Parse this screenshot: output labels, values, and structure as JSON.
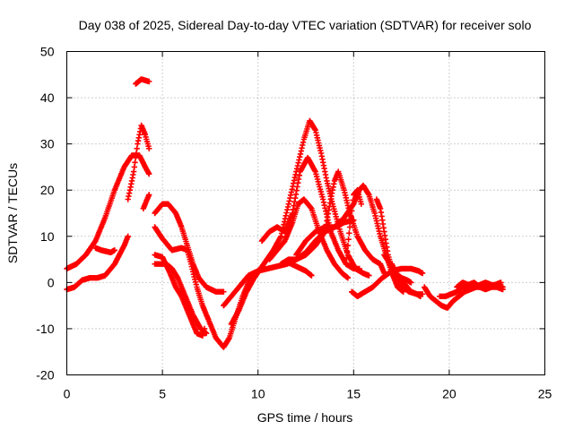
{
  "chart_data": {
    "type": "scatter",
    "title": "Day 038 of 2025, Sidereal Day-to-day VTEC variation (SDTVAR) for receiver solo",
    "xlabel": "GPS time / hours",
    "ylabel": "SDTVAR / TECUs",
    "xlim": [
      0,
      25
    ],
    "ylim": [
      -20,
      50
    ],
    "xticks": [
      0,
      5,
      10,
      15,
      20,
      25
    ],
    "yticks": [
      -20,
      -10,
      0,
      10,
      20,
      30,
      40,
      50
    ],
    "xtick_labels": [
      "0",
      "5",
      "10",
      "15",
      "20",
      "25"
    ],
    "ytick_labels": [
      "-20",
      "-10",
      "0",
      "10",
      "20",
      "30",
      "40",
      "50"
    ],
    "grid": true,
    "marker": "+",
    "color": "#ff0000",
    "series": [
      {
        "name": "s1",
        "points": [
          [
            0,
            3
          ],
          [
            0.5,
            4
          ],
          [
            1,
            6
          ],
          [
            1.5,
            9
          ],
          [
            2,
            14
          ],
          [
            2.5,
            20
          ],
          [
            3,
            25
          ],
          [
            3.4,
            27.5
          ],
          [
            3.8,
            27.5
          ],
          [
            4.1,
            25
          ],
          [
            4.3,
            23.5
          ]
        ]
      },
      {
        "name": "s2",
        "points": [
          [
            0,
            -1.5
          ],
          [
            0.4,
            -1
          ],
          [
            0.8,
            0.5
          ],
          [
            1.2,
            1
          ],
          [
            1.6,
            1
          ],
          [
            2,
            1.5
          ],
          [
            2.5,
            4
          ],
          [
            3,
            8
          ],
          [
            3.2,
            10
          ]
        ]
      },
      {
        "name": "s3",
        "points": [
          [
            1.5,
            7.5
          ],
          [
            1.8,
            7
          ],
          [
            2.3,
            6.5
          ],
          [
            2.5,
            7
          ]
        ]
      },
      {
        "name": "s4",
        "points": [
          [
            3.2,
            18
          ],
          [
            3.5,
            24
          ],
          [
            3.7,
            30
          ],
          [
            3.9,
            34
          ],
          [
            4.1,
            32
          ],
          [
            4.3,
            29
          ]
        ]
      },
      {
        "name": "s5",
        "points": [
          [
            3.6,
            43
          ],
          [
            3.9,
            44
          ],
          [
            4.3,
            43.5
          ]
        ]
      },
      {
        "name": "s6",
        "points": [
          [
            4,
            16
          ],
          [
            4.2,
            18
          ],
          [
            4.3,
            19
          ]
        ]
      },
      {
        "name": "s7",
        "points": [
          [
            4.6,
            15
          ],
          [
            5,
            17
          ],
          [
            5.3,
            17
          ],
          [
            5.7,
            15
          ],
          [
            6,
            12
          ],
          [
            6.3,
            8
          ],
          [
            6.6,
            4
          ],
          [
            6.9,
            1
          ],
          [
            7.3,
            -1
          ],
          [
            7.8,
            -2
          ],
          [
            8.2,
            -2
          ]
        ]
      },
      {
        "name": "s8",
        "points": [
          [
            4.6,
            12
          ],
          [
            5,
            9.5
          ],
          [
            5.5,
            7
          ],
          [
            6,
            7.5
          ],
          [
            6.3,
            7
          ],
          [
            6.5,
            4
          ],
          [
            6.8,
            -1
          ],
          [
            7.1,
            -5
          ],
          [
            7.4,
            -8
          ],
          [
            7.8,
            -12
          ],
          [
            8.2,
            -14
          ],
          [
            8.5,
            -12
          ],
          [
            8.8,
            -8
          ],
          [
            9.2,
            -3
          ],
          [
            9.6,
            1
          ],
          [
            10,
            2.5
          ],
          [
            10.2,
            3
          ]
        ]
      },
      {
        "name": "s9",
        "points": [
          [
            4.6,
            6
          ],
          [
            5,
            5.5
          ],
          [
            5.4,
            2
          ],
          [
            5.7,
            -1
          ],
          [
            6,
            -3
          ],
          [
            6.2,
            -5
          ],
          [
            6.5,
            -8
          ],
          [
            6.8,
            -11
          ],
          [
            7.1,
            -11.5
          ],
          [
            7.2,
            -10
          ]
        ]
      },
      {
        "name": "s10",
        "points": [
          [
            4.6,
            4
          ],
          [
            5.2,
            4
          ],
          [
            5.5,
            3
          ],
          [
            5.8,
            1
          ],
          [
            6.2,
            -3
          ],
          [
            6.6,
            -7
          ],
          [
            7,
            -10
          ],
          [
            7.3,
            -11
          ]
        ]
      },
      {
        "name": "s11",
        "points": [
          [
            8.2,
            -5
          ],
          [
            8.6,
            -3
          ],
          [
            9,
            -1
          ],
          [
            9.5,
            1.5
          ],
          [
            10,
            2.5
          ],
          [
            10.5,
            3
          ],
          [
            11,
            3.5
          ],
          [
            11.5,
            4
          ],
          [
            12,
            5
          ],
          [
            12.5,
            6.5
          ],
          [
            13,
            9
          ],
          [
            13.5,
            11
          ],
          [
            14,
            12
          ],
          [
            14.5,
            13
          ],
          [
            15,
            13.5
          ]
        ]
      },
      {
        "name": "s12",
        "points": [
          [
            8.6,
            -9
          ],
          [
            9,
            -6
          ],
          [
            9.4,
            -2
          ],
          [
            9.8,
            1
          ],
          [
            10.3,
            4
          ],
          [
            10.8,
            7
          ],
          [
            11.2,
            10
          ],
          [
            11.6,
            17
          ],
          [
            12,
            24
          ],
          [
            12.4,
            31
          ],
          [
            12.7,
            35
          ],
          [
            13,
            33
          ],
          [
            13.3,
            28
          ],
          [
            13.6,
            22
          ],
          [
            13.9,
            17
          ],
          [
            14.3,
            11
          ],
          [
            14.7,
            6
          ],
          [
            15.1,
            3
          ],
          [
            15.5,
            2
          ],
          [
            15.8,
            1.5
          ]
        ]
      },
      {
        "name": "s13",
        "points": [
          [
            10.2,
            9
          ],
          [
            10.6,
            11
          ],
          [
            11,
            12
          ],
          [
            11.4,
            11
          ],
          [
            11.8,
            15
          ],
          [
            12.2,
            24
          ],
          [
            12.6,
            27
          ],
          [
            13,
            24
          ],
          [
            13.4,
            18
          ],
          [
            13.8,
            11
          ],
          [
            14.2,
            7
          ],
          [
            14.6,
            4
          ],
          [
            15,
            3
          ],
          [
            15.3,
            3
          ]
        ]
      },
      {
        "name": "s14",
        "points": [
          [
            10.6,
            5
          ],
          [
            11,
            7
          ],
          [
            11.4,
            9
          ],
          [
            11.6,
            11
          ],
          [
            11.8,
            13
          ],
          [
            12.1,
            17
          ],
          [
            12.4,
            18
          ],
          [
            12.8,
            16
          ],
          [
            13.2,
            11
          ],
          [
            13.6,
            7
          ],
          [
            14,
            4
          ],
          [
            14.4,
            2
          ],
          [
            14.7,
            1
          ]
        ]
      },
      {
        "name": "s15",
        "points": [
          [
            11.2,
            4
          ],
          [
            11.6,
            5
          ],
          [
            12,
            5
          ],
          [
            12.5,
            6
          ],
          [
            13,
            8
          ],
          [
            13.5,
            11
          ],
          [
            13.8,
            18
          ],
          [
            14,
            22
          ],
          [
            14.2,
            24
          ],
          [
            14.5,
            20
          ],
          [
            14.8,
            15
          ],
          [
            15.2,
            10
          ],
          [
            15.6,
            7
          ],
          [
            16,
            5
          ],
          [
            16.4,
            4
          ],
          [
            16.6,
            2
          ]
        ]
      },
      {
        "name": "s16",
        "points": [
          [
            11.5,
            4.5
          ],
          [
            12,
            3.5
          ],
          [
            12.5,
            2.5
          ],
          [
            12.8,
            1.5
          ]
        ]
      },
      {
        "name": "s17",
        "points": [
          [
            12,
            6
          ],
          [
            12.5,
            9
          ],
          [
            13,
            11
          ],
          [
            13.5,
            12
          ],
          [
            14,
            12
          ],
          [
            14.5,
            14
          ],
          [
            15,
            17
          ],
          [
            15.3,
            20
          ],
          [
            15.5,
            21
          ],
          [
            15.8,
            19
          ],
          [
            16.1,
            15
          ],
          [
            16.4,
            10
          ],
          [
            16.7,
            6
          ],
          [
            17,
            2
          ],
          [
            17.3,
            -1
          ],
          [
            17.6,
            -2
          ]
        ]
      },
      {
        "name": "s18",
        "points": [
          [
            14.6,
            4
          ],
          [
            14.8,
            12
          ],
          [
            15,
            19
          ],
          [
            15.2,
            20
          ],
          [
            15.4,
            17
          ]
        ]
      },
      {
        "name": "s19",
        "points": [
          [
            14.9,
            -2
          ],
          [
            15.2,
            -3
          ],
          [
            15.6,
            -2
          ],
          [
            16,
            -1
          ],
          [
            16.5,
            1
          ],
          [
            17,
            2.5
          ],
          [
            17.5,
            3
          ],
          [
            18,
            3
          ],
          [
            18.4,
            2.5
          ],
          [
            18.6,
            2
          ]
        ]
      },
      {
        "name": "s20",
        "points": [
          [
            16.2,
            18
          ],
          [
            16.4,
            16
          ],
          [
            16.6,
            11
          ],
          [
            16.8,
            6
          ],
          [
            17,
            3
          ],
          [
            17.3,
            0.5
          ],
          [
            17.6,
            -1
          ],
          [
            17.9,
            -2
          ],
          [
            18.3,
            -2.5
          ],
          [
            18.6,
            -2.5
          ]
        ]
      },
      {
        "name": "s21",
        "points": [
          [
            16.6,
            6
          ],
          [
            16.9,
            4
          ],
          [
            17.2,
            2
          ],
          [
            17.5,
            1
          ],
          [
            17.8,
            0.5
          ],
          [
            18,
            0
          ]
        ]
      },
      {
        "name": "s22",
        "points": [
          [
            17,
            4
          ],
          [
            17.2,
            2
          ],
          [
            17.4,
            1
          ],
          [
            17.6,
            0
          ],
          [
            17.8,
            -1
          ],
          [
            18,
            -2
          ],
          [
            18.3,
            -2.5
          ],
          [
            18.5,
            -3
          ]
        ]
      },
      {
        "name": "s23",
        "points": [
          [
            18.7,
            -1
          ],
          [
            19,
            -3
          ],
          [
            19.3,
            -4
          ],
          [
            19.6,
            -5
          ],
          [
            19.9,
            -5.5
          ],
          [
            20.2,
            -4
          ],
          [
            20.5,
            -3
          ],
          [
            20.8,
            -2
          ],
          [
            21.1,
            -1.5
          ],
          [
            21.4,
            -1
          ],
          [
            21.7,
            -1
          ],
          [
            22,
            -1
          ],
          [
            22.4,
            -0.5
          ],
          [
            22.7,
            0
          ]
        ]
      },
      {
        "name": "s24",
        "points": [
          [
            19.5,
            -3
          ],
          [
            19.8,
            -3
          ],
          [
            20.1,
            -2.5
          ],
          [
            20.4,
            -2
          ],
          [
            20.7,
            -1
          ],
          [
            21,
            -0.5
          ],
          [
            21.3,
            0
          ],
          [
            21.6,
            -1
          ],
          [
            21.9,
            -1.5
          ],
          [
            22.2,
            -1
          ],
          [
            22.5,
            -1
          ],
          [
            22.8,
            -1.5
          ]
        ]
      },
      {
        "name": "s25",
        "points": [
          [
            20.4,
            -1
          ],
          [
            20.7,
            0
          ],
          [
            21,
            -0.5
          ],
          [
            21.3,
            -1
          ],
          [
            21.6,
            -0.5
          ],
          [
            21.9,
            0
          ],
          [
            22.2,
            -0.5
          ],
          [
            22.5,
            -0.5
          ],
          [
            22.8,
            -1
          ]
        ]
      }
    ]
  }
}
